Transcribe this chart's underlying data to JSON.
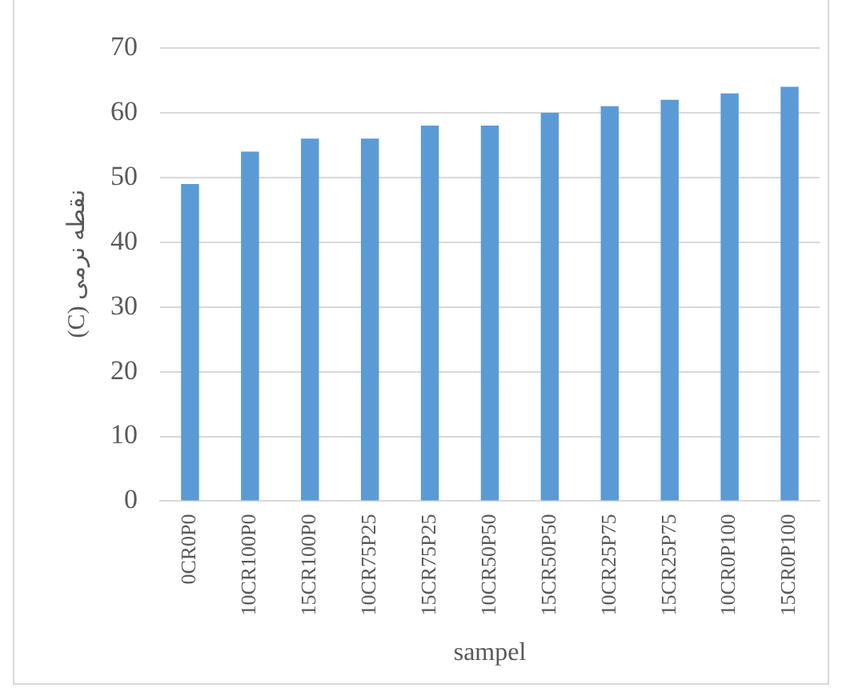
{
  "chart_data": {
    "type": "bar",
    "ylabel": "نقطه نرمی (C)",
    "xlabel": "sampel",
    "categories": [
      "0CR0P0",
      "10CR100P0",
      "15CR100P0",
      "10CR75P25",
      "15CR75P25",
      "10CR50P50",
      "15CR50P50",
      "10CR25P75",
      "15CR25P75",
      "10CR0P100",
      "15CR0P100"
    ],
    "values": [
      49,
      54,
      56,
      56,
      58,
      58,
      60,
      61,
      62,
      63,
      64
    ],
    "color": "#5b9bd5",
    "ylim": [
      0,
      70
    ],
    "yticks": [
      0,
      10,
      20,
      30,
      40,
      50,
      60,
      70
    ],
    "grid": "y",
    "legend": false
  }
}
